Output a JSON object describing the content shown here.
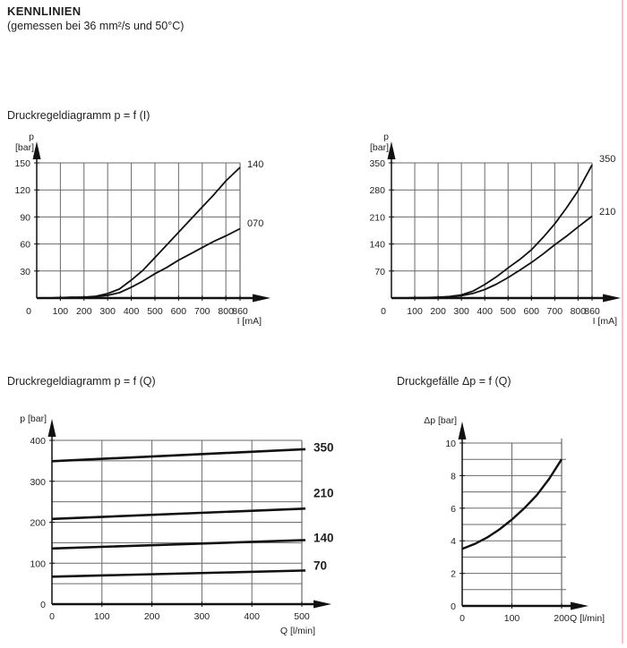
{
  "page": {
    "title": "KENNLINIEN",
    "subtitle": "(gemessen bei 36 mm²/s und 50°C)"
  },
  "colors": {
    "grid": "#6a6a6a",
    "axis": "#111111",
    "curve": "#111111",
    "text": "#1f1f1f",
    "accent_border": "#f2c6c6"
  },
  "section_titles": {
    "p_f_i": "Druckregeldiagramm p = f (I)",
    "p_f_q": "Druckregeldiagramm p = f (Q)",
    "dp_f_q": "Druckgefälle Δp = f (Q)"
  },
  "chart_data": [
    {
      "id": "pfi-150",
      "type": "line",
      "title": "Druckregeldiagramm p = f (I)",
      "xlabel": "I [mA]",
      "ylabel": "p [bar]",
      "ylabel_lines": [
        "p",
        "[bar]"
      ],
      "xlim": [
        0,
        860
      ],
      "ylim": [
        0,
        150
      ],
      "xticks": [
        0,
        100,
        200,
        300,
        400,
        500,
        600,
        700,
        800,
        860
      ],
      "yticks": [
        30,
        60,
        90,
        120,
        150
      ],
      "grid": true,
      "legend_position": "right-of-curve-end",
      "series": [
        {
          "name": "140",
          "x": [
            0,
            50,
            100,
            150,
            200,
            250,
            300,
            350,
            400,
            450,
            500,
            550,
            600,
            650,
            700,
            750,
            800,
            860
          ],
          "y": [
            0,
            0,
            0.5,
            0.8,
            1,
            2,
            5,
            10,
            20,
            31,
            45,
            59,
            73,
            87,
            101,
            115,
            130,
            145
          ]
        },
        {
          "name": "070",
          "x": [
            0,
            50,
            100,
            150,
            200,
            250,
            300,
            350,
            400,
            450,
            500,
            550,
            600,
            650,
            700,
            750,
            800,
            860
          ],
          "y": [
            0,
            0,
            0.5,
            0.8,
            1,
            1.5,
            3,
            6,
            12,
            19,
            27,
            34,
            42,
            49,
            56,
            63,
            69,
            77
          ]
        }
      ]
    },
    {
      "id": "pfi-350",
      "type": "line",
      "title": "Druckregeldiagramm p = f (I)",
      "xlabel": "I [mA]",
      "ylabel": "p [bar]",
      "ylabel_lines": [
        "p",
        "[bar]"
      ],
      "xlim": [
        0,
        860
      ],
      "ylim": [
        0,
        350
      ],
      "xticks": [
        0,
        100,
        200,
        300,
        400,
        500,
        600,
        700,
        800,
        860
      ],
      "yticks": [
        70,
        140,
        210,
        280,
        350
      ],
      "grid": true,
      "legend_position": "right-of-curve-end",
      "series": [
        {
          "name": "350",
          "x": [
            0,
            50,
            100,
            150,
            200,
            250,
            300,
            350,
            400,
            450,
            500,
            550,
            600,
            650,
            700,
            750,
            800,
            860
          ],
          "y": [
            0,
            0,
            1,
            1.5,
            2,
            4,
            8,
            18,
            35,
            55,
            78,
            100,
            125,
            157,
            192,
            233,
            278,
            345
          ]
        },
        {
          "name": "210",
          "x": [
            0,
            50,
            100,
            150,
            200,
            250,
            300,
            350,
            400,
            450,
            500,
            550,
            600,
            650,
            700,
            750,
            800,
            860
          ],
          "y": [
            0,
            0,
            1,
            1.2,
            2,
            3,
            6,
            12,
            22,
            36,
            53,
            72,
            92,
            114,
            138,
            160,
            184,
            212
          ]
        }
      ]
    },
    {
      "id": "pfq",
      "type": "line",
      "title": "Druckregeldiagramm p = f (Q)",
      "xlabel": "Q [l/min]",
      "ylabel": "p [bar]",
      "ylabel_lines": [
        "p [bar]"
      ],
      "xlim": [
        0,
        500
      ],
      "ylim": [
        0,
        400
      ],
      "xticks": [
        0,
        100,
        200,
        300,
        400,
        500
      ],
      "yticks": [
        0,
        100,
        200,
        300,
        400
      ],
      "minor_y_step": 50,
      "grid": true,
      "legend_position": "right-of-curve-end",
      "series": [
        {
          "name": "350",
          "x": [
            0,
            500
          ],
          "y": [
            349,
            378
          ]
        },
        {
          "name": "210",
          "x": [
            0,
            500
          ],
          "y": [
            208,
            233
          ]
        },
        {
          "name": "140",
          "x": [
            0,
            500
          ],
          "y": [
            136,
            156
          ]
        },
        {
          "name": "70",
          "x": [
            0,
            500
          ],
          "y": [
            67,
            82
          ]
        }
      ]
    },
    {
      "id": "dpfq",
      "type": "line",
      "title": "Druckgefälle Δp = f (Q)",
      "xlabel": "Q [l/min]",
      "ylabel": "Δp [bar]",
      "ylabel_lines": [
        "Δp [bar]"
      ],
      "xlim": [
        0,
        200
      ],
      "ylim": [
        0,
        10
      ],
      "xticks": [
        0,
        100,
        200
      ],
      "yticks": [
        0,
        2,
        4,
        6,
        8,
        10
      ],
      "minor_y_step": 1,
      "grid": true,
      "series": [
        {
          "name": "",
          "x": [
            0,
            25,
            50,
            75,
            100,
            125,
            150,
            175,
            200
          ],
          "y": [
            3.5,
            3.8,
            4.2,
            4.7,
            5.3,
            6.0,
            6.8,
            7.8,
            9.0
          ]
        }
      ]
    }
  ]
}
